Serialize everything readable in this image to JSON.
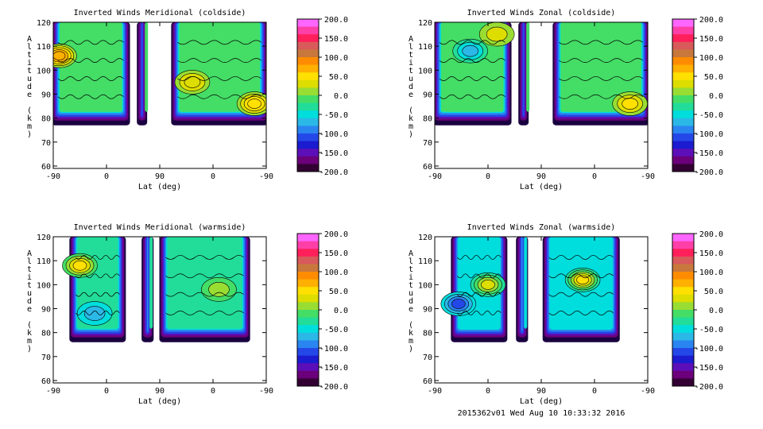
{
  "chart_data": [
    {
      "type": "heatmap",
      "title": "Inverted Winds Meridional (coldside)",
      "xlabel": "Lat (deg)",
      "ylabel": "Altitude (km)",
      "xticks": [
        "-90",
        "0",
        "90",
        "0",
        "-90"
      ],
      "yticks": [
        "60",
        "70",
        "80",
        "90",
        "100",
        "110",
        "120"
      ],
      "ylim": [
        59,
        120
      ],
      "colorbar": {
        "ticks": [
          "200.0",
          "150.0",
          "100.0",
          "50.0",
          "0.0",
          "-50.0",
          "-100.0",
          "-150.0",
          "-200.0"
        ],
        "range": [
          -200,
          200
        ]
      },
      "data_extent": {
        "altitude_range_km": [
          78,
          120
        ],
        "filled_lon_spans": [
          [
            -90,
            37
          ],
          [
            54,
            66
          ],
          [
            112,
            270
          ]
        ],
        "dominant_level": -10,
        "extreme_spots": [
          {
            "x": -80,
            "y": 106,
            "value": 80
          },
          {
            "x": 145,
            "y": 95,
            "value": 40
          },
          {
            "x": 250,
            "y": 86,
            "value": 60
          }
        ]
      }
    },
    {
      "type": "heatmap",
      "title": "Inverted Winds Zonal (coldside)",
      "xlabel": "Lat (deg)",
      "ylabel": "Altitude (km)",
      "xticks": [
        "-90",
        "0",
        "90",
        "0",
        "-90"
      ],
      "yticks": [
        "60",
        "70",
        "80",
        "90",
        "100",
        "110",
        "120"
      ],
      "ylim": [
        59,
        120
      ],
      "colorbar": {
        "ticks": [
          "200.0",
          "150.0",
          "100.0",
          "50.0",
          "0.0",
          "-50.0",
          "-100.0",
          "-150.0",
          "-200.0"
        ],
        "range": [
          -200,
          200
        ]
      },
      "data_extent": {
        "altitude_range_km": [
          78,
          120
        ],
        "filled_lon_spans": [
          [
            -90,
            37
          ],
          [
            54,
            66
          ],
          [
            112,
            270
          ]
        ],
        "dominant_level": -15,
        "extreme_spots": [
          {
            "x": -30,
            "y": 108,
            "value": -70
          },
          {
            "x": 15,
            "y": 115,
            "value": 30
          },
          {
            "x": 240,
            "y": 86,
            "value": 50
          }
        ]
      }
    },
    {
      "type": "heatmap",
      "title": "Inverted Winds Meridional (warmside)",
      "xlabel": "Lat (deg)",
      "ylabel": "Altitude (km)",
      "xticks": [
        "-90",
        "0",
        "90",
        "0",
        "-90"
      ],
      "yticks": [
        "60",
        "70",
        "80",
        "90",
        "100",
        "110",
        "120"
      ],
      "ylim": [
        59,
        120
      ],
      "colorbar": {
        "ticks": [
          "200.0",
          "150.0",
          "100.0",
          "50.0",
          "0.0",
          "-50.0",
          "-100.0",
          "-150.0",
          "-200.0"
        ],
        "range": [
          -200,
          200
        ]
      },
      "data_extent": {
        "altitude_range_km": [
          77,
          120
        ],
        "filled_lon_spans": [
          [
            -60,
            30
          ],
          [
            62,
            77
          ],
          [
            92,
            240
          ]
        ],
        "dominant_level": -25,
        "extreme_spots": [
          {
            "x": -45,
            "y": 108,
            "value": 60
          },
          {
            "x": -20,
            "y": 88,
            "value": -70
          },
          {
            "x": 190,
            "y": 98,
            "value": 10
          }
        ]
      }
    },
    {
      "type": "heatmap",
      "title": "Inverted Winds Zonal (warmside)",
      "xlabel": "Lat (deg)",
      "ylabel": "Altitude (km)",
      "xticks": [
        "-90",
        "0",
        "90",
        "0",
        "-90"
      ],
      "yticks": [
        "60",
        "70",
        "80",
        "90",
        "100",
        "110",
        "120"
      ],
      "ylim": [
        59,
        120
      ],
      "colorbar": {
        "ticks": [
          "200.0",
          "150.0",
          "100.0",
          "50.0",
          "0.0",
          "-50.0",
          "-100.0",
          "-150.0",
          "-200.0"
        ],
        "range": [
          -200,
          200
        ]
      },
      "data_extent": {
        "altitude_range_km": [
          77,
          120
        ],
        "filled_lon_spans": [
          [
            -60,
            30
          ],
          [
            50,
            65
          ],
          [
            95,
            220
          ]
        ],
        "dominant_level": -40,
        "extreme_spots": [
          {
            "x": -50,
            "y": 92,
            "value": -110
          },
          {
            "x": 0,
            "y": 100,
            "value": 40
          },
          {
            "x": 160,
            "y": 102,
            "value": 60
          }
        ]
      }
    }
  ],
  "footer": {
    "stamp": "2015362v01 Wed Aug 10 10:33:32 2016"
  },
  "colors": {
    "colorbar_bands": [
      "#ff66ff",
      "#ff3fa8",
      "#ff1f5a",
      "#d85a5a",
      "#c8783c",
      "#ff8c00",
      "#ffb000",
      "#ffe000",
      "#dddd00",
      "#99dd33",
      "#44dd66",
      "#22dd99",
      "#00dddd",
      "#2bb8e6",
      "#2a85f0",
      "#2448e8",
      "#1b1bd0",
      "#5c0fb8",
      "#6b007a",
      "#330033"
    ]
  }
}
